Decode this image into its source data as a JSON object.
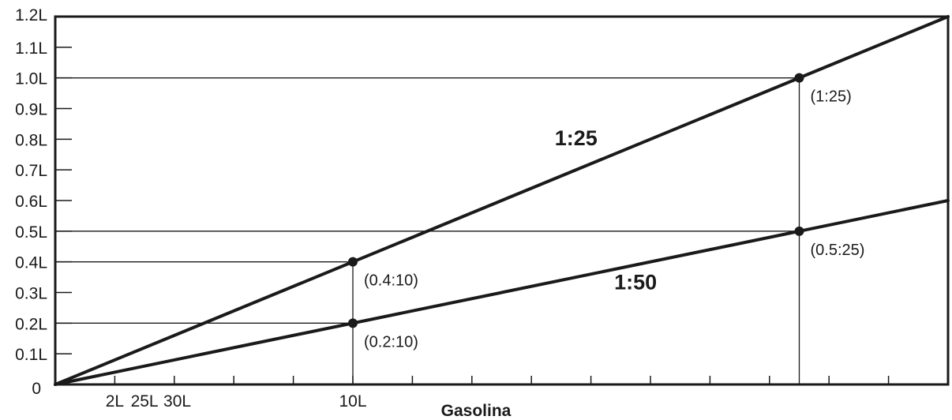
{
  "chart_data": {
    "type": "line",
    "title": "",
    "xlabel": "Gasolina",
    "ylabel": "",
    "xlim": [
      0,
      30
    ],
    "ylim": [
      0,
      1.2
    ],
    "grid": false,
    "y_ticks": [
      {
        "value": 0,
        "label": "0"
      },
      {
        "value": 0.1,
        "label": "0.1L"
      },
      {
        "value": 0.2,
        "label": "0.2L"
      },
      {
        "value": 0.3,
        "label": "0.3L"
      },
      {
        "value": 0.4,
        "label": "0.4L"
      },
      {
        "value": 0.5,
        "label": "0.5L"
      },
      {
        "value": 0.6,
        "label": "0.6L"
      },
      {
        "value": 0.7,
        "label": "0.7L"
      },
      {
        "value": 0.8,
        "label": "0.8L"
      },
      {
        "value": 0.9,
        "label": "0.9L"
      },
      {
        "value": 1.0,
        "label": "1.0L"
      },
      {
        "value": 1.1,
        "label": "1.1L"
      },
      {
        "value": 1.2,
        "label": "1.2L"
      }
    ],
    "x_ticks": [
      {
        "value": 2,
        "label": "2L"
      },
      {
        "value": 4,
        "label": ""
      },
      {
        "value": 6,
        "label": ""
      },
      {
        "value": 8,
        "label": ""
      },
      {
        "value": 10,
        "label": "10L"
      },
      {
        "value": 12,
        "label": ""
      },
      {
        "value": 14,
        "label": ""
      },
      {
        "value": 16,
        "label": ""
      },
      {
        "value": 18,
        "label": ""
      },
      {
        "value": 20,
        "label": ""
      },
      {
        "value": 22,
        "label": ""
      },
      {
        "value": 24,
        "label": ""
      },
      {
        "value": 26,
        "label": ""
      },
      {
        "value": 28,
        "label": ""
      }
    ],
    "x_extra_labels": [
      {
        "value": 3.0,
        "label": "25L"
      },
      {
        "value": 4.1,
        "label": "30L"
      }
    ],
    "series": [
      {
        "name": "1:25",
        "x": [
          0,
          30
        ],
        "y": [
          0,
          1.2
        ]
      },
      {
        "name": "1:50",
        "x": [
          0,
          30
        ],
        "y": [
          0,
          0.6
        ]
      }
    ],
    "series_labels": [
      {
        "text": "1:25",
        "x": 17.5,
        "y": 0.78
      },
      {
        "text": "1:50",
        "x": 19.5,
        "y": 0.31
      }
    ],
    "points": [
      {
        "x": 10,
        "y": 0.4,
        "label": "(0.4:10)"
      },
      {
        "x": 10,
        "y": 0.2,
        "label": "(0.2:10)"
      },
      {
        "x": 25,
        "y": 1.0,
        "label": "(1:25)"
      },
      {
        "x": 25,
        "y": 0.5,
        "label": "(0.5:25)"
      }
    ]
  }
}
